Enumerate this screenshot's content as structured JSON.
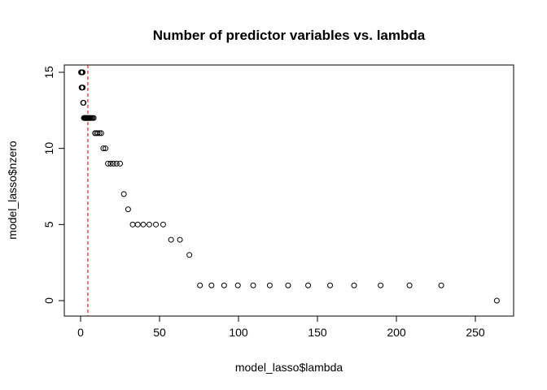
{
  "chart_data": {
    "type": "scatter",
    "title": "Number of predictor variables vs. lambda",
    "xlabel": "model_lasso$lambda",
    "ylabel": "model_lasso$nzero",
    "xlim": [
      0,
      264
    ],
    "ylim": [
      0,
      15
    ],
    "xticks": [
      "0",
      "50",
      "100",
      "150",
      "200",
      "250"
    ],
    "yticks": [
      "0",
      "5",
      "10",
      "15"
    ],
    "grid": false,
    "vline": {
      "x": 4.6,
      "color": "#cc0000",
      "style": "dashed"
    },
    "points": [
      {
        "x": 0.3,
        "y": 15
      },
      {
        "x": 0.5,
        "y": 15
      },
      {
        "x": 0.7,
        "y": 15
      },
      {
        "x": 0.9,
        "y": 15
      },
      {
        "x": 1.1,
        "y": 15
      },
      {
        "x": 1.3,
        "y": 15
      },
      {
        "x": 0.6,
        "y": 14
      },
      {
        "x": 1.0,
        "y": 14
      },
      {
        "x": 1.4,
        "y": 14
      },
      {
        "x": 1.6,
        "y": 13
      },
      {
        "x": 1.9,
        "y": 13
      },
      {
        "x": 2.1,
        "y": 12
      },
      {
        "x": 2.4,
        "y": 12
      },
      {
        "x": 2.7,
        "y": 12
      },
      {
        "x": 3.0,
        "y": 12
      },
      {
        "x": 3.3,
        "y": 12
      },
      {
        "x": 3.6,
        "y": 12
      },
      {
        "x": 4.0,
        "y": 12
      },
      {
        "x": 4.4,
        "y": 12
      },
      {
        "x": 4.8,
        "y": 12
      },
      {
        "x": 5.3,
        "y": 12
      },
      {
        "x": 5.8,
        "y": 12
      },
      {
        "x": 6.3,
        "y": 12
      },
      {
        "x": 6.9,
        "y": 12
      },
      {
        "x": 7.6,
        "y": 12
      },
      {
        "x": 8.3,
        "y": 12
      },
      {
        "x": 9.1,
        "y": 11
      },
      {
        "x": 10.0,
        "y": 11
      },
      {
        "x": 10.9,
        "y": 11
      },
      {
        "x": 12.0,
        "y": 11
      },
      {
        "x": 13.1,
        "y": 11
      },
      {
        "x": 14.4,
        "y": 10
      },
      {
        "x": 15.8,
        "y": 10
      },
      {
        "x": 17.3,
        "y": 9
      },
      {
        "x": 19.0,
        "y": 9
      },
      {
        "x": 20.8,
        "y": 9
      },
      {
        "x": 22.8,
        "y": 9
      },
      {
        "x": 25.0,
        "y": 9
      },
      {
        "x": 27.4,
        "y": 7
      },
      {
        "x": 30.1,
        "y": 6
      },
      {
        "x": 33.0,
        "y": 5
      },
      {
        "x": 36.2,
        "y": 5
      },
      {
        "x": 39.7,
        "y": 5
      },
      {
        "x": 43.5,
        "y": 5
      },
      {
        "x": 47.7,
        "y": 5
      },
      {
        "x": 52.3,
        "y": 5
      },
      {
        "x": 57.3,
        "y": 4
      },
      {
        "x": 62.9,
        "y": 4
      },
      {
        "x": 68.9,
        "y": 3
      },
      {
        "x": 75.6,
        "y": 1
      },
      {
        "x": 82.9,
        "y": 1
      },
      {
        "x": 90.9,
        "y": 1
      },
      {
        "x": 99.6,
        "y": 1
      },
      {
        "x": 109.3,
        "y": 1
      },
      {
        "x": 119.8,
        "y": 1
      },
      {
        "x": 131.4,
        "y": 1
      },
      {
        "x": 144.1,
        "y": 1
      },
      {
        "x": 158.0,
        "y": 1
      },
      {
        "x": 173.2,
        "y": 1
      },
      {
        "x": 190.0,
        "y": 1
      },
      {
        "x": 208.3,
        "y": 1
      },
      {
        "x": 228.4,
        "y": 1
      },
      {
        "x": 263.6,
        "y": 0
      }
    ]
  }
}
